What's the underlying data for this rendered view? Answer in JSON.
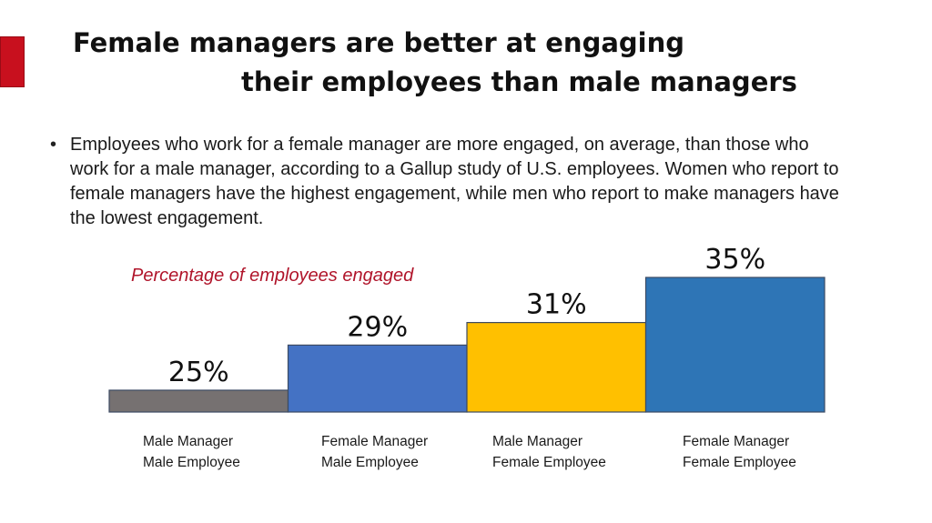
{
  "title": {
    "line1": "Female managers are better at engaging",
    "line2": "their employees than male managers"
  },
  "bullet": "Employees who work for a female manager are more engaged, on average, than those who work for a male manager, according to a Gallup study of U.S. employees.  Women who report to female managers have the highest engagement, while men who report to make managers have the lowest engagement.",
  "colors": {
    "accent": "#c8101e",
    "caption": "#b0142a"
  },
  "chart_data": {
    "type": "bar",
    "title": "Percentage of employees engaged",
    "categories": [
      {
        "line1": "Male Manager",
        "line2": "Male Employee"
      },
      {
        "line1": "Female Manager",
        "line2": "Male Employee"
      },
      {
        "line1": "Male Manager",
        "line2": "Female Employee"
      },
      {
        "line1": "Female Manager",
        "line2": "Female Employee"
      }
    ],
    "values": [
      25,
      29,
      31,
      35
    ],
    "value_labels": [
      "25%",
      "29%",
      "31%",
      "35%"
    ],
    "bar_colors": [
      "#767171",
      "#4472c4",
      "#ffc000",
      "#2e75b6"
    ],
    "unit": "%",
    "grid": false,
    "legend": "none"
  }
}
